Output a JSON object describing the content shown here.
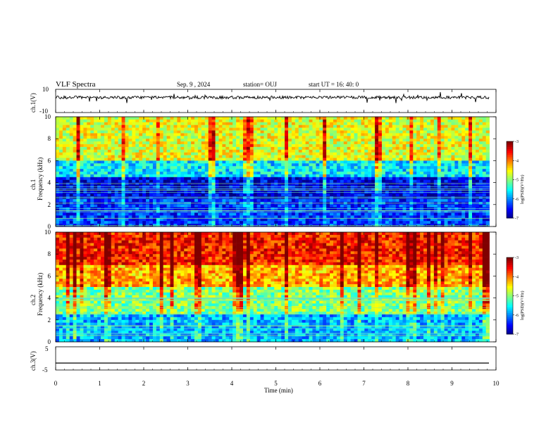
{
  "header": {
    "title": "VLF Spectra",
    "date": "Sep. 9 , 2024",
    "station": "station= OUJ",
    "start": "start  UT =   16: 40: 0"
  },
  "chart_data": [
    {
      "type": "line",
      "panel": "ch1-waveform",
      "ylabel": "ch.1(V)",
      "ylim": [
        -10,
        10
      ],
      "y_ticks": [
        "10",
        "-10"
      ],
      "baseline_value": 3,
      "series_color": "#000000"
    },
    {
      "type": "heatmap",
      "panel": "ch1-spectrogram",
      "ylabel_line1": "ch.1",
      "ylabel_line2": "Frequency (kHz)",
      "ylim": [
        0,
        10
      ],
      "y_ticks": [
        "0",
        "2",
        "4",
        "6",
        "8",
        "10"
      ],
      "description_bands": [
        {
          "from_khz": 0,
          "to_khz": 2.5,
          "level": -6.3
        },
        {
          "from_khz": 2.5,
          "to_khz": 4.5,
          "level": -6.6
        },
        {
          "from_khz": 4.5,
          "to_khz": 6,
          "level": -5.6
        },
        {
          "from_khz": 6,
          "to_khz": 10,
          "level": -4.6
        }
      ],
      "colorbar": {
        "ticks": [
          "-3",
          "-4",
          "-5",
          "-6",
          "-7"
        ],
        "label": "log(PSD)(V²/Hz)",
        "range": [
          -7,
          -3
        ]
      }
    },
    {
      "type": "heatmap",
      "panel": "ch2-spectrogram",
      "ylabel_line1": "ch.2",
      "ylabel_line2": "Frequency (kHz)",
      "ylim": [
        0,
        10
      ],
      "y_ticks": [
        "0",
        "2",
        "4",
        "6",
        "8",
        "10"
      ],
      "description_bands": [
        {
          "from_khz": 0,
          "to_khz": 2.5,
          "level": -5.8
        },
        {
          "from_khz": 2.5,
          "to_khz": 5,
          "level": -5.0
        },
        {
          "from_khz": 5,
          "to_khz": 7,
          "level": -4.2
        },
        {
          "from_khz": 7,
          "to_khz": 10,
          "level": -3.6
        }
      ],
      "colorbar": {
        "ticks": [
          "-3",
          "-4",
          "-5",
          "-6",
          "-7"
        ],
        "label": "log(PSD)(V²/Hz)",
        "range": [
          -7,
          -3
        ]
      }
    },
    {
      "type": "line",
      "panel": "ch3-waveform",
      "ylabel": "ch.3(V)",
      "ylim": [
        -5,
        5
      ],
      "y_ticks": [
        "5",
        "-5"
      ],
      "baseline_value": -2,
      "series_color": "#000000"
    }
  ],
  "x_axis": {
    "label": "Time  (min)",
    "range": [
      0,
      10
    ],
    "ticks": [
      "0",
      "1",
      "2",
      "3",
      "4",
      "5",
      "6",
      "7",
      "8",
      "9",
      "10"
    ],
    "data_end": 9.85
  }
}
